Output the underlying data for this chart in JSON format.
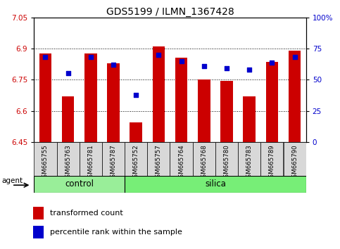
{
  "title": "GDS5199 / ILMN_1367428",
  "samples": [
    "GSM665755",
    "GSM665763",
    "GSM665781",
    "GSM665787",
    "GSM665752",
    "GSM665757",
    "GSM665764",
    "GSM665768",
    "GSM665780",
    "GSM665783",
    "GSM665789",
    "GSM665790"
  ],
  "groups": [
    "control",
    "control",
    "control",
    "control",
    "silica",
    "silica",
    "silica",
    "silica",
    "silica",
    "silica",
    "silica",
    "silica"
  ],
  "bar_values": [
    6.875,
    6.67,
    6.875,
    6.83,
    6.545,
    6.91,
    6.855,
    6.75,
    6.745,
    6.67,
    6.835,
    6.89
  ],
  "dot_values_pct": [
    68,
    55,
    68,
    62,
    38,
    70,
    65,
    61,
    59,
    58,
    64,
    68
  ],
  "y_min": 6.45,
  "y_max": 7.05,
  "y_ticks": [
    6.45,
    6.6,
    6.75,
    6.9,
    7.05
  ],
  "y_tick_labels": [
    "6.45",
    "6.6",
    "6.75",
    "6.9",
    "7.05"
  ],
  "y2_ticks": [
    0,
    25,
    50,
    75,
    100
  ],
  "y2_tick_labels": [
    "0",
    "25",
    "50",
    "75",
    "100%"
  ],
  "bar_color": "#cc0000",
  "dot_color": "#0000cc",
  "control_color": "#99ee99",
  "silica_color": "#77ee77",
  "tick_label_color_left": "#cc0000",
  "tick_label_color_right": "#0000cc",
  "agent_label": "agent",
  "control_label": "control",
  "silica_label": "silica",
  "legend_transformed": "transformed count",
  "legend_percentile": "percentile rank within the sample",
  "n_control": 4,
  "n_silica": 8
}
